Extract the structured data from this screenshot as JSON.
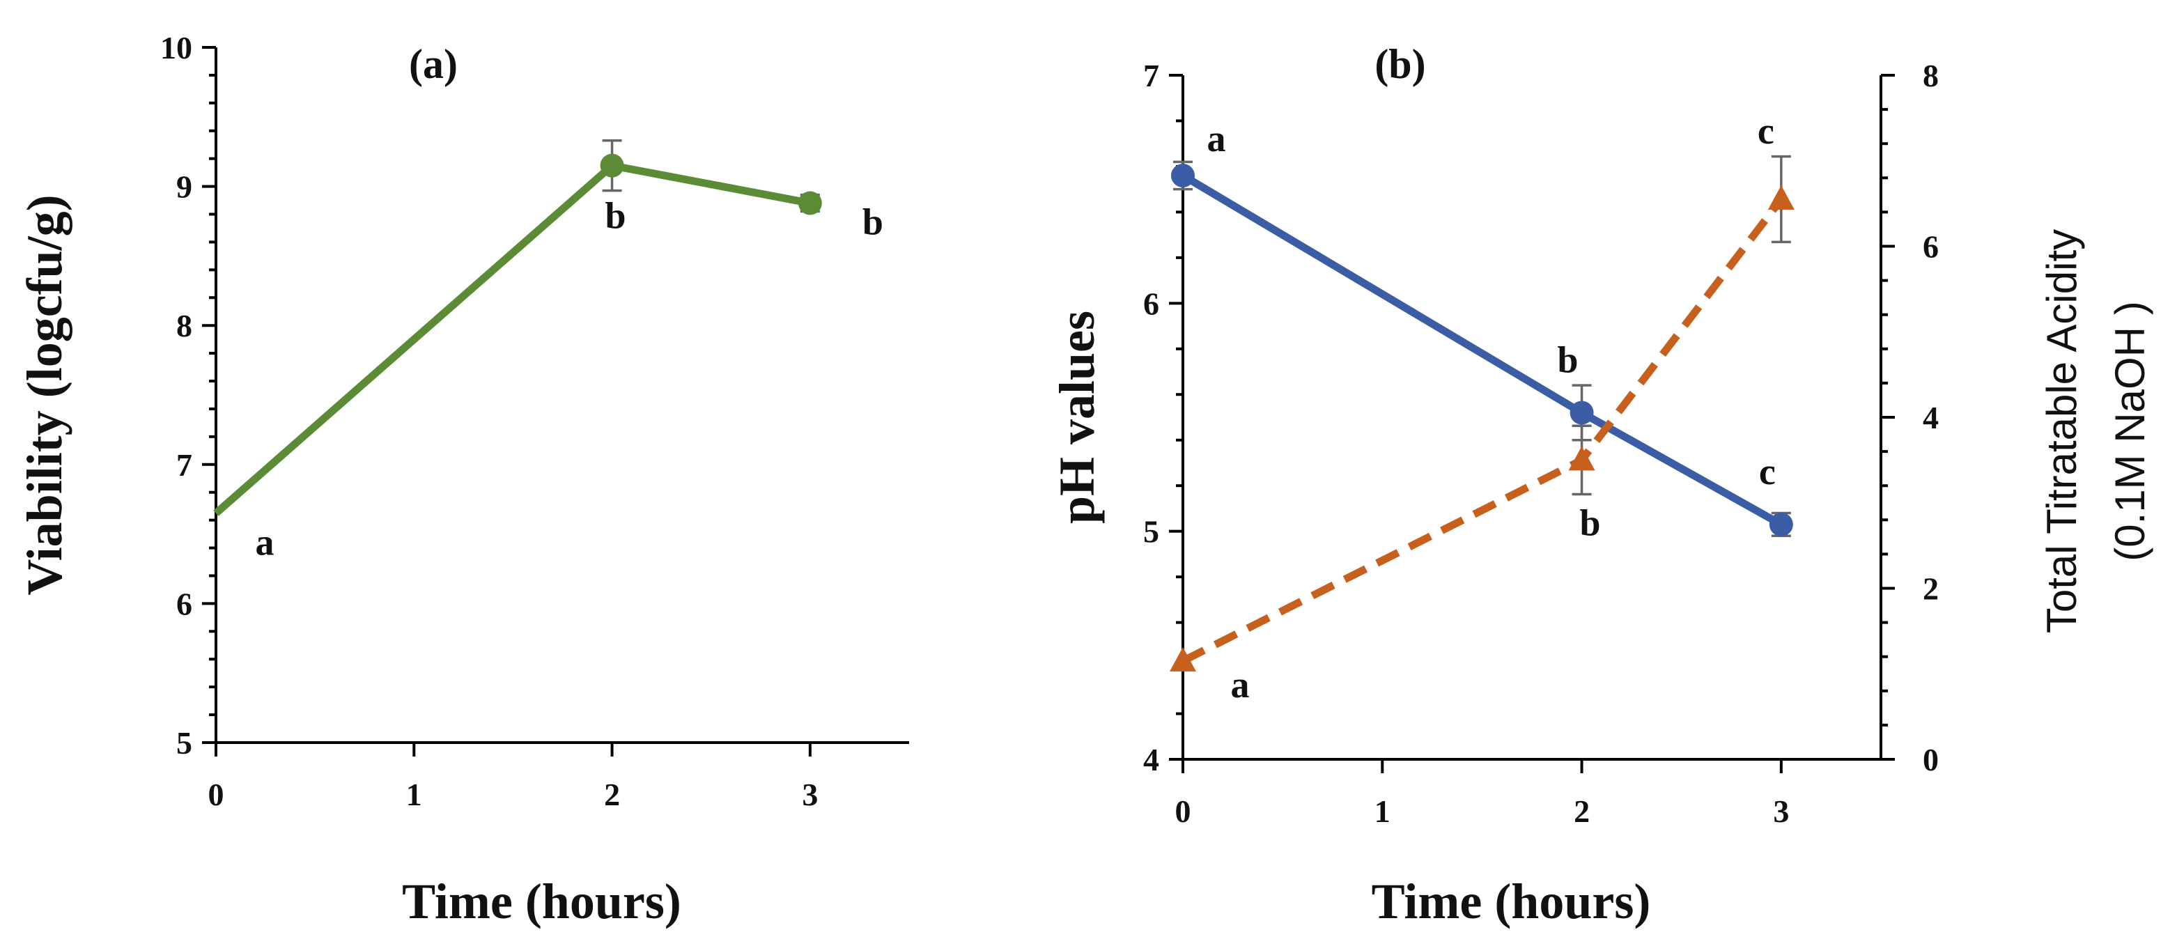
{
  "chart_data": [
    {
      "type": "line",
      "panel_label": "(a)",
      "x": [
        0,
        2,
        3
      ],
      "xticks": [
        0,
        1,
        2,
        3
      ],
      "xlim": [
        0,
        3.5
      ],
      "xlabel": "Time (hours)",
      "ylabel": "Viability (logcfu/g)",
      "yticks": [
        5,
        6,
        7,
        8,
        9,
        10
      ],
      "ylim": [
        5,
        10
      ],
      "series": [
        {
          "name": "Viability",
          "axis": "left",
          "color": "#5b8c35",
          "dash": "solid",
          "marker": "circle",
          "values": [
            6.65,
            9.15,
            8.88
          ],
          "errors": [
            0,
            0.18,
            0.06
          ],
          "sig_labels": [
            "a",
            "b",
            "b"
          ],
          "marker_visible": [
            false,
            true,
            true
          ]
        }
      ]
    },
    {
      "type": "line",
      "panel_label": "(b)",
      "x": [
        0,
        2,
        3
      ],
      "xticks": [
        0,
        1,
        2,
        3
      ],
      "xlim": [
        0,
        3.5
      ],
      "xlabel": "Time (hours)",
      "ylabel": "pH values",
      "yticks": [
        4,
        5,
        6,
        7
      ],
      "ylim": [
        4,
        7
      ],
      "y2label_line1": "Total Titratable Acidity",
      "y2label_line2": "(0.1M NaOH )",
      "y2ticks": [
        0,
        2,
        4,
        6,
        8
      ],
      "y2lim": [
        0,
        8
      ],
      "series": [
        {
          "name": "pH",
          "axis": "left",
          "color": "#3a5da5",
          "dash": "solid",
          "marker": "circle",
          "values": [
            6.56,
            5.52,
            5.03
          ],
          "errors": [
            0.06,
            0.12,
            0.05
          ],
          "sig_labels": [
            "a",
            "b",
            "c"
          ],
          "marker_visible": [
            true,
            true,
            true
          ]
        },
        {
          "name": "Total Titratable Acidity",
          "axis": "right",
          "color": "#c8601d",
          "dash": "dashed",
          "marker": "triangle",
          "values": [
            1.15,
            3.5,
            6.55
          ],
          "errors": [
            0,
            0.4,
            0.5
          ],
          "sig_labels": [
            "a",
            "b",
            "c"
          ],
          "marker_visible": [
            true,
            true,
            true
          ]
        }
      ]
    }
  ]
}
